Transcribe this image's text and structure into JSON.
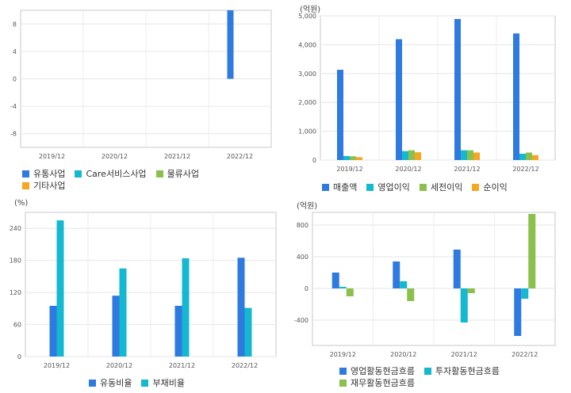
{
  "colors": {
    "blue": "#2e7ae0",
    "cyan": "#14b8d0",
    "green": "#8cc04c",
    "orange": "#f5a623"
  },
  "charts": [
    {
      "unit": "",
      "legend_rows": [
        [
          0,
          1,
          2
        ],
        [
          3
        ]
      ]
    },
    {
      "unit": "(억원)",
      "legend_rows": [
        [
          0,
          1,
          2,
          3
        ]
      ]
    },
    {
      "unit": "(%)",
      "legend_rows": [
        [
          0,
          1
        ]
      ]
    },
    {
      "unit": "(억원)",
      "legend_rows": [
        [
          0,
          1
        ],
        [
          2
        ]
      ]
    }
  ],
  "chart_data": [
    {
      "type": "bar",
      "categories": [
        "2019/12",
        "2020/12",
        "2021/12",
        "2022/12"
      ],
      "ylim": [
        -10,
        10
      ],
      "yticks": [
        8,
        4,
        0,
        -4,
        -8
      ],
      "grid": true,
      "legend_position": "bottom",
      "series": [
        {
          "name": "유통사업",
          "color": "#2e7ae0",
          "values": [
            null,
            null,
            null,
            10
          ]
        },
        {
          "name": "Care서비스사업",
          "color": "#14b8d0",
          "values": [
            null,
            null,
            null,
            null
          ]
        },
        {
          "name": "물류사업",
          "color": "#8cc04c",
          "values": [
            null,
            null,
            null,
            null
          ]
        },
        {
          "name": "기타사업",
          "color": "#f5a623",
          "values": [
            null,
            null,
            null,
            null
          ]
        }
      ]
    },
    {
      "type": "bar",
      "categories": [
        "2019/12",
        "2020/12",
        "2021/12",
        "2022/12"
      ],
      "ylim": [
        0,
        5000
      ],
      "yticks": [
        0,
        1000,
        2000,
        3000,
        4000,
        5000
      ],
      "ytick_labels": [
        "0",
        "1,000",
        "2,000",
        "3,000",
        "4,000",
        "5,000"
      ],
      "grid": true,
      "legend_position": "bottom",
      "series": [
        {
          "name": "매출액",
          "color": "#2e7ae0",
          "values": [
            3130,
            4190,
            4890,
            4390
          ]
        },
        {
          "name": "영업이익",
          "color": "#14b8d0",
          "values": [
            140,
            310,
            340,
            220
          ]
        },
        {
          "name": "세전이익",
          "color": "#8cc04c",
          "values": [
            130,
            340,
            340,
            260
          ]
        },
        {
          "name": "순이익",
          "color": "#f5a623",
          "values": [
            100,
            270,
            260,
            170
          ]
        }
      ]
    },
    {
      "type": "bar",
      "categories": [
        "2019/12",
        "2020/12",
        "2021/12",
        "2022/12"
      ],
      "ylim": [
        0,
        270
      ],
      "yticks": [
        0,
        60,
        120,
        180,
        240
      ],
      "grid": true,
      "legend_position": "bottom",
      "series": [
        {
          "name": "유동비율",
          "color": "#2e7ae0",
          "values": [
            95,
            114,
            95,
            185
          ]
        },
        {
          "name": "부채비율",
          "color": "#14b8d0",
          "values": [
            255,
            165,
            184,
            91
          ]
        }
      ]
    },
    {
      "type": "bar",
      "categories": [
        "2019/12",
        "2020/12",
        "2021/12",
        "2022/12"
      ],
      "ylim": [
        -720,
        960
      ],
      "yticks": [
        -400,
        0,
        400,
        800
      ],
      "grid": true,
      "legend_position": "bottom",
      "series": [
        {
          "name": "영업활동현금흐름",
          "color": "#2e7ae0",
          "values": [
            200,
            340,
            490,
            -600
          ]
        },
        {
          "name": "투자활동현금흐름",
          "color": "#14b8d0",
          "values": [
            20,
            90,
            -430,
            -130
          ]
        },
        {
          "name": "재무활동현금흐름",
          "color": "#8cc04c",
          "values": [
            -100,
            -160,
            -60,
            940
          ]
        }
      ]
    }
  ]
}
